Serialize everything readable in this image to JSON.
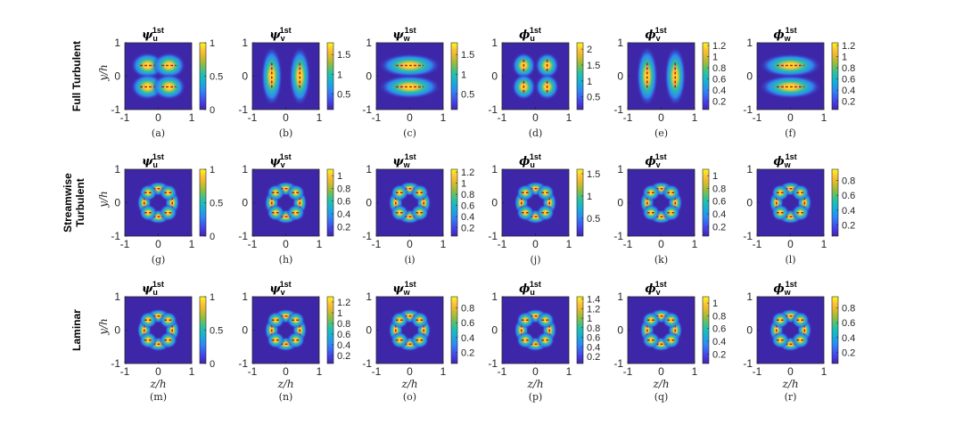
{
  "figure": {
    "row_labels": [
      [
        "Full Turbulent"
      ],
      [
        "Streamwise",
        "Turbulent"
      ],
      [
        "Laminar"
      ]
    ],
    "column_titles": [
      {
        "sym": "ψ",
        "sub": "u",
        "sup": "1st"
      },
      {
        "sym": "ψ",
        "sub": "v",
        "sup": "1st"
      },
      {
        "sym": "ψ",
        "sub": "w",
        "sup": "1st"
      },
      {
        "sym": "ϕ",
        "sub": "u",
        "sup": "1st"
      },
      {
        "sym": "ϕ",
        "sub": "v",
        "sup": "1st"
      },
      {
        "sym": "ϕ",
        "sub": "w",
        "sup": "1st"
      }
    ],
    "x_ticks": [
      "-1",
      "0",
      "1"
    ],
    "y_ticks": [
      "1",
      "0",
      "-1"
    ],
    "xlabel": "z/h",
    "ylabel": "y/h",
    "captions": [
      "(a)",
      "(b)",
      "(c)",
      "(d)",
      "(e)",
      "(f)",
      "(g)",
      "(h)",
      "(i)",
      "(j)",
      "(k)",
      "(l)",
      "(m)",
      "(n)",
      "(o)",
      "(p)",
      "(q)",
      "(r)"
    ],
    "colormap": [
      "#3e26a8",
      "#4741e9",
      "#2e87f7",
      "#15b1d5",
      "#2bc29f",
      "#8dbd40",
      "#e0b92c",
      "#fec437",
      "#f9fb15"
    ]
  },
  "chart_data": [
    {
      "type": "heatmap",
      "panel": "(a)",
      "title": "ψu 1st",
      "xlim": [
        -1,
        1
      ],
      "ylim": [
        -1,
        1
      ],
      "colorbar_ticks": [
        "1",
        "0.5",
        "0"
      ],
      "colorbar_range": [
        0,
        1
      ],
      "pattern": "four-lobe-ring"
    },
    {
      "type": "heatmap",
      "panel": "(b)",
      "title": "ψv 1st",
      "xlim": [
        -1,
        1
      ],
      "ylim": [
        -1,
        1
      ],
      "colorbar_ticks": [
        "1.5",
        "1",
        "0.5"
      ],
      "colorbar_range": [
        0.1,
        1.8
      ],
      "pattern": "left-right-lobes"
    },
    {
      "type": "heatmap",
      "panel": "(c)",
      "title": "ψw 1st",
      "xlim": [
        -1,
        1
      ],
      "ylim": [
        -1,
        1
      ],
      "colorbar_ticks": [
        "1.5",
        "1",
        "0.5"
      ],
      "colorbar_range": [
        0.1,
        1.8
      ],
      "pattern": "top-bottom-lobes"
    },
    {
      "type": "heatmap",
      "panel": "(d)",
      "title": "ϕu 1st",
      "xlim": [
        -1,
        1
      ],
      "ylim": [
        -1,
        1
      ],
      "colorbar_ticks": [
        "2",
        "1.5",
        "1",
        "0.5"
      ],
      "colorbar_range": [
        0.1,
        2.2
      ],
      "pattern": "four-corner-lobes"
    },
    {
      "type": "heatmap",
      "panel": "(e)",
      "title": "ϕv 1st",
      "xlim": [
        -1,
        1
      ],
      "ylim": [
        -1,
        1
      ],
      "colorbar_ticks": [
        "1.2",
        "1",
        "0.8",
        "0.6",
        "0.4",
        "0.2"
      ],
      "colorbar_range": [
        0.05,
        1.25
      ],
      "pattern": "left-right-lobes"
    },
    {
      "type": "heatmap",
      "panel": "(f)",
      "title": "ϕw 1st",
      "xlim": [
        -1,
        1
      ],
      "ylim": [
        -1,
        1
      ],
      "colorbar_ticks": [
        "1.2",
        "1",
        "0.8",
        "0.6",
        "0.4",
        "0.2"
      ],
      "colorbar_range": [
        0.05,
        1.25
      ],
      "pattern": "top-bottom-lobes"
    },
    {
      "type": "heatmap",
      "panel": "(g)",
      "title": "ψu 1st",
      "xlim": [
        -1,
        1
      ],
      "ylim": [
        -1,
        1
      ],
      "colorbar_ticks": [
        "1",
        "0.5",
        "0"
      ],
      "colorbar_range": [
        0,
        1
      ],
      "pattern": "eight-lobe-ring"
    },
    {
      "type": "heatmap",
      "panel": "(h)",
      "title": "ψv 1st",
      "xlim": [
        -1,
        1
      ],
      "ylim": [
        -1,
        1
      ],
      "colorbar_ticks": [
        "1",
        "0.8",
        "0.6",
        "0.4",
        "0.2"
      ],
      "colorbar_range": [
        0.05,
        1.1
      ],
      "pattern": "eight-lobe-ring"
    },
    {
      "type": "heatmap",
      "panel": "(i)",
      "title": "ψw 1st",
      "xlim": [
        -1,
        1
      ],
      "ylim": [
        -1,
        1
      ],
      "colorbar_ticks": [
        "1.2",
        "1",
        "0.8",
        "0.6",
        "0.4",
        "0.2"
      ],
      "colorbar_range": [
        0.05,
        1.25
      ],
      "pattern": "eight-lobe-ring"
    },
    {
      "type": "heatmap",
      "panel": "(j)",
      "title": "ϕu 1st",
      "xlim": [
        -1,
        1
      ],
      "ylim": [
        -1,
        1
      ],
      "colorbar_ticks": [
        "1.5",
        "1",
        "0.5"
      ],
      "colorbar_range": [
        0.1,
        1.6
      ],
      "pattern": "eight-lobe-ring"
    },
    {
      "type": "heatmap",
      "panel": "(k)",
      "title": "ϕv 1st",
      "xlim": [
        -1,
        1
      ],
      "ylim": [
        -1,
        1
      ],
      "colorbar_ticks": [
        "1",
        "0.8",
        "0.6",
        "0.4",
        "0.2"
      ],
      "colorbar_range": [
        0.05,
        1.1
      ],
      "pattern": "eight-lobe-ring"
    },
    {
      "type": "heatmap",
      "panel": "(l)",
      "title": "ϕw 1st",
      "xlim": [
        -1,
        1
      ],
      "ylim": [
        -1,
        1
      ],
      "colorbar_ticks": [
        "0.8",
        "0.6",
        "0.4",
        "0.2"
      ],
      "colorbar_range": [
        0.05,
        0.95
      ],
      "pattern": "eight-lobe-ring"
    },
    {
      "type": "heatmap",
      "panel": "(m)",
      "title": "ψu 1st",
      "xlim": [
        -1,
        1
      ],
      "ylim": [
        -1,
        1
      ],
      "colorbar_ticks": [
        "1",
        "0.5",
        "0"
      ],
      "colorbar_range": [
        0,
        1
      ],
      "pattern": "eight-lobe-ring"
    },
    {
      "type": "heatmap",
      "panel": "(n)",
      "title": "ψv 1st",
      "xlim": [
        -1,
        1
      ],
      "ylim": [
        -1,
        1
      ],
      "colorbar_ticks": [
        "1.2",
        "1",
        "0.8",
        "0.6",
        "0.4",
        "0.2"
      ],
      "colorbar_range": [
        0.05,
        1.3
      ],
      "pattern": "eight-lobe-ring"
    },
    {
      "type": "heatmap",
      "panel": "(o)",
      "title": "ψw 1st",
      "xlim": [
        -1,
        1
      ],
      "ylim": [
        -1,
        1
      ],
      "colorbar_ticks": [
        "0.8",
        "0.6",
        "0.4",
        "0.2"
      ],
      "colorbar_range": [
        0.05,
        0.95
      ],
      "pattern": "eight-lobe-ring"
    },
    {
      "type": "heatmap",
      "panel": "(p)",
      "title": "ϕu 1st",
      "xlim": [
        -1,
        1
      ],
      "ylim": [
        -1,
        1
      ],
      "colorbar_ticks": [
        "1.4",
        "1.2",
        "1",
        "0.8",
        "0.6",
        "0.4",
        "0.2"
      ],
      "colorbar_range": [
        0.05,
        1.45
      ],
      "pattern": "eight-lobe-ring"
    },
    {
      "type": "heatmap",
      "panel": "(q)",
      "title": "ϕv 1st",
      "xlim": [
        -1,
        1
      ],
      "ylim": [
        -1,
        1
      ],
      "colorbar_ticks": [
        "1",
        "0.8",
        "0.6",
        "0.4",
        "0.2"
      ],
      "colorbar_range": [
        0.05,
        1.1
      ],
      "pattern": "eight-lobe-ring"
    },
    {
      "type": "heatmap",
      "panel": "(r)",
      "title": "ϕw 1st",
      "xlim": [
        -1,
        1
      ],
      "ylim": [
        -1,
        1
      ],
      "colorbar_ticks": [
        "0.8",
        "0.6",
        "0.4",
        "0.2"
      ],
      "colorbar_range": [
        0.05,
        0.95
      ],
      "pattern": "eight-lobe-ring"
    }
  ]
}
